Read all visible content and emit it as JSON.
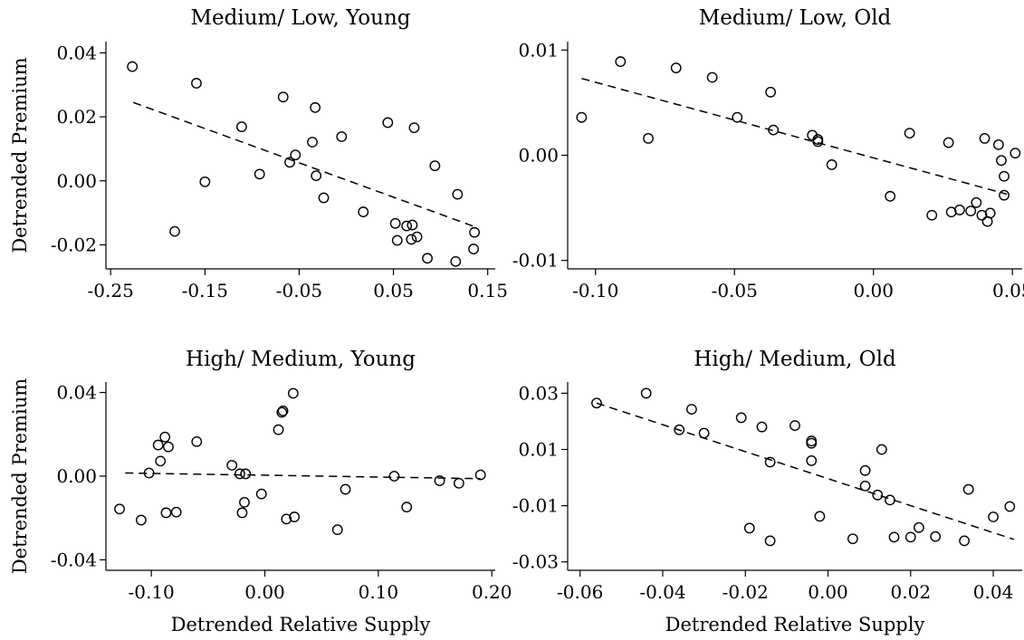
{
  "chart_data": [
    {
      "type": "scatter",
      "title": "Medium/ Low, Young",
      "xlabel": "",
      "ylabel": "Detrended Premium",
      "xlim": [
        -0.255,
        0.158
      ],
      "ylim": [
        -0.0275,
        0.0435
      ],
      "xticks": [
        -0.25,
        -0.15,
        -0.05,
        0.05,
        0.15
      ],
      "xtick_labels": [
        "-0.25",
        "-0.15",
        "-0.05",
        "0.05",
        "0.15"
      ],
      "yticks": [
        -0.02,
        0.0,
        0.02,
        0.04
      ],
      "ytick_labels": [
        "-0.02",
        "0.00",
        "0.02",
        "0.04"
      ],
      "fit_line": {
        "x": [
          -0.226,
          0.135
        ],
        "y": [
          0.0245,
          -0.0142
        ]
      },
      "points": [
        [
          -0.227,
          0.0357
        ],
        [
          -0.182,
          -0.0158
        ],
        [
          -0.159,
          0.0305
        ],
        [
          -0.15,
          -0.0003
        ],
        [
          -0.111,
          0.0169
        ],
        [
          -0.092,
          0.0021
        ],
        [
          -0.067,
          0.0262
        ],
        [
          -0.06,
          0.0058
        ],
        [
          -0.054,
          0.0081
        ],
        [
          -0.036,
          0.0121
        ],
        [
          -0.033,
          0.0229
        ],
        [
          -0.032,
          0.0016
        ],
        [
          -0.024,
          -0.0053
        ],
        [
          -0.005,
          0.0138
        ],
        [
          0.018,
          -0.0097
        ],
        [
          0.044,
          0.0182
        ],
        [
          0.052,
          -0.0133
        ],
        [
          0.054,
          -0.0186
        ],
        [
          0.064,
          -0.0141
        ],
        [
          0.069,
          -0.0183
        ],
        [
          0.07,
          -0.0138
        ],
        [
          0.072,
          0.0166
        ],
        [
          0.075,
          -0.0175
        ],
        [
          0.086,
          -0.0242
        ],
        [
          0.094,
          0.0047
        ],
        [
          0.116,
          -0.0252
        ],
        [
          0.118,
          -0.0042
        ],
        [
          0.135,
          -0.0213
        ],
        [
          0.136,
          -0.0161
        ]
      ]
    },
    {
      "type": "scatter",
      "title": "Medium/ Low, Old",
      "xlabel": "",
      "ylabel": "",
      "xlim": [
        -0.11,
        0.0535
      ],
      "ylim": [
        -0.0108,
        0.0108
      ],
      "xticks": [
        -0.1,
        -0.05,
        0.0,
        0.05
      ],
      "xtick_labels": [
        "-0.10",
        "-0.05",
        "0.00",
        "0.05"
      ],
      "yticks": [
        -0.01,
        0.0,
        0.01
      ],
      "ytick_labels": [
        "-0.01",
        "0.00",
        "0.01"
      ],
      "fit_line": {
        "x": [
          -0.105,
          0.048
        ],
        "y": [
          0.0073,
          -0.0037
        ]
      },
      "points": [
        [
          -0.105,
          0.0036
        ],
        [
          -0.091,
          0.0089
        ],
        [
          -0.081,
          0.0016
        ],
        [
          -0.071,
          0.0083
        ],
        [
          -0.058,
          0.0074
        ],
        [
          -0.049,
          0.0036
        ],
        [
          -0.037,
          0.006
        ],
        [
          -0.036,
          0.0024
        ],
        [
          -0.022,
          0.0019
        ],
        [
          -0.02,
          0.0015
        ],
        [
          -0.02,
          0.0013
        ],
        [
          -0.015,
          -0.0009
        ],
        [
          0.006,
          -0.0039
        ],
        [
          0.013,
          0.0021
        ],
        [
          0.021,
          -0.0057
        ],
        [
          0.027,
          0.0012
        ],
        [
          0.028,
          -0.0054
        ],
        [
          0.031,
          -0.0052
        ],
        [
          0.035,
          -0.0053
        ],
        [
          0.037,
          -0.0045
        ],
        [
          0.039,
          -0.0057
        ],
        [
          0.04,
          0.0016
        ],
        [
          0.041,
          -0.0063
        ],
        [
          0.042,
          -0.0055
        ],
        [
          0.045,
          0.001
        ],
        [
          0.046,
          -0.0005
        ],
        [
          0.047,
          -0.002
        ],
        [
          0.047,
          -0.0038
        ],
        [
          0.051,
          0.0002
        ]
      ]
    },
    {
      "type": "scatter",
      "title": "High/ Medium, Young",
      "xlabel": "Detrended Relative Supply",
      "ylabel": "Detrended Premium",
      "xlim": [
        -0.14,
        0.203
      ],
      "ylim": [
        -0.045,
        0.045
      ],
      "xticks": [
        -0.1,
        0.0,
        0.1,
        0.2
      ],
      "xtick_labels": [
        "-0.10",
        "0.00",
        "0.10",
        "0.20"
      ],
      "yticks": [
        -0.04,
        0.0,
        0.04
      ],
      "ytick_labels": [
        "-0.04",
        "0.00",
        "0.04"
      ],
      "fit_line": {
        "x": [
          -0.123,
          0.19
        ],
        "y": [
          0.0015,
          -0.0012
        ]
      },
      "points": [
        [
          -0.128,
          -0.0157
        ],
        [
          -0.109,
          -0.021
        ],
        [
          -0.102,
          0.0015
        ],
        [
          -0.094,
          0.0149
        ],
        [
          -0.092,
          0.0072
        ],
        [
          -0.088,
          0.0187
        ],
        [
          -0.087,
          -0.0175
        ],
        [
          -0.085,
          0.014
        ],
        [
          -0.078,
          -0.0172
        ],
        [
          -0.06,
          0.0165
        ],
        [
          -0.029,
          0.0052
        ],
        [
          -0.022,
          0.0011
        ],
        [
          -0.02,
          -0.0175
        ],
        [
          -0.018,
          -0.0125
        ],
        [
          -0.017,
          0.0011
        ],
        [
          -0.003,
          -0.0085
        ],
        [
          0.012,
          0.0222
        ],
        [
          0.015,
          0.0305
        ],
        [
          0.016,
          0.0312
        ],
        [
          0.019,
          -0.0205
        ],
        [
          0.025,
          0.0396
        ],
        [
          0.026,
          -0.0195
        ],
        [
          0.064,
          -0.0256
        ],
        [
          0.071,
          -0.0063
        ],
        [
          0.114,
          0.0
        ],
        [
          0.125,
          -0.0148
        ],
        [
          0.154,
          -0.0022
        ],
        [
          0.171,
          -0.0034
        ],
        [
          0.19,
          0.0006
        ]
      ]
    },
    {
      "type": "scatter",
      "title": "High/ Medium, Old",
      "xlabel": "Detrended Relative Supply",
      "ylabel": "",
      "xlim": [
        -0.063,
        0.047
      ],
      "ylim": [
        -0.033,
        0.034
      ],
      "xticks": [
        -0.06,
        -0.04,
        -0.02,
        0.0,
        0.02,
        0.04
      ],
      "xtick_labels": [
        "-0.06",
        "-0.04",
        "-0.02",
        "0.00",
        "0.02",
        "0.04"
      ],
      "yticks": [
        -0.03,
        -0.01,
        0.01,
        0.03
      ],
      "ytick_labels": [
        "-0.03",
        "-0.01",
        "0.01",
        "0.03"
      ],
      "fit_line": {
        "x": [
          -0.056,
          0.045
        ],
        "y": [
          0.0265,
          -0.022
        ]
      },
      "points": [
        [
          -0.056,
          0.0265
        ],
        [
          -0.044,
          0.03
        ],
        [
          -0.036,
          0.017
        ],
        [
          -0.033,
          0.0243
        ],
        [
          -0.03,
          0.0158
        ],
        [
          -0.021,
          0.0213
        ],
        [
          -0.019,
          -0.018
        ],
        [
          -0.016,
          0.018
        ],
        [
          -0.014,
          0.0055
        ],
        [
          -0.014,
          -0.0225
        ],
        [
          -0.008,
          0.0185
        ],
        [
          -0.004,
          0.013
        ],
        [
          -0.004,
          0.0122
        ],
        [
          -0.004,
          0.006
        ],
        [
          -0.002,
          -0.0138
        ],
        [
          0.006,
          -0.0218
        ],
        [
          0.009,
          0.0025
        ],
        [
          0.009,
          -0.003
        ],
        [
          0.012,
          -0.0062
        ],
        [
          0.013,
          0.01
        ],
        [
          0.015,
          -0.008
        ],
        [
          0.016,
          -0.0212
        ],
        [
          0.02,
          -0.0212
        ],
        [
          0.022,
          -0.0178
        ],
        [
          0.026,
          -0.021
        ],
        [
          0.033,
          -0.0225
        ],
        [
          0.034,
          -0.0042
        ],
        [
          0.04,
          -0.014
        ],
        [
          0.044,
          -0.0103
        ]
      ]
    }
  ]
}
